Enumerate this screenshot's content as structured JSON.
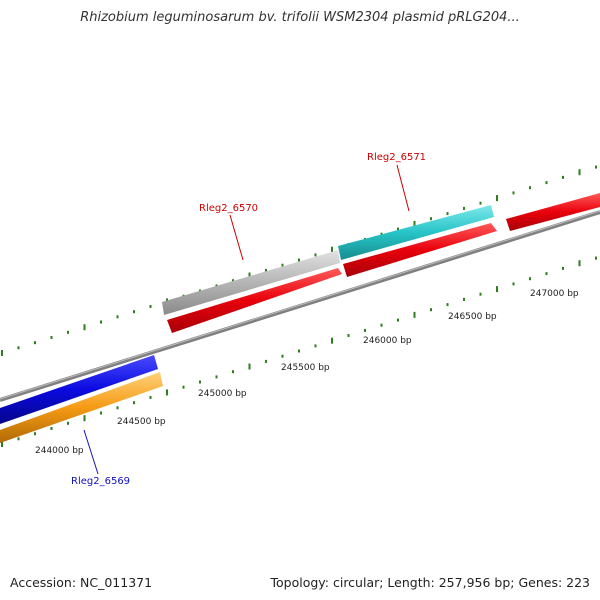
{
  "title": "Rhizobium leguminosarum bv. trifolii WSM2304 plasmid pRLG204...",
  "footer": {
    "accession": "Accession: NC_011371",
    "summary": "Topology: circular; Length: 257,956 bp; Genes: 223"
  },
  "colors": {
    "backbone": "#808080",
    "tick_green": "#2e7d1e",
    "gene_red": "#e8000b",
    "gene_cyan": "#27c4c7",
    "gene_grey": "#b5b5b5",
    "gene_blue": "#0a0ae0",
    "gene_orange": "#f59b14",
    "label_red": "#cc0000",
    "label_blue": "#1010c0"
  },
  "scale_labels": [
    {
      "text": "244000 bp"
    },
    {
      "text": "244500 bp"
    },
    {
      "text": "245000 bp"
    },
    {
      "text": "245500 bp"
    },
    {
      "text": "246000 bp"
    },
    {
      "text": "246500 bp"
    },
    {
      "text": "247000 bp"
    }
  ],
  "gene_labels": [
    {
      "text": "Rleg2_6571",
      "color": "label_red"
    },
    {
      "text": "Rleg2_6570",
      "color": "label_red"
    },
    {
      "text": "Rleg2_6569",
      "color": "label_blue"
    }
  ]
}
